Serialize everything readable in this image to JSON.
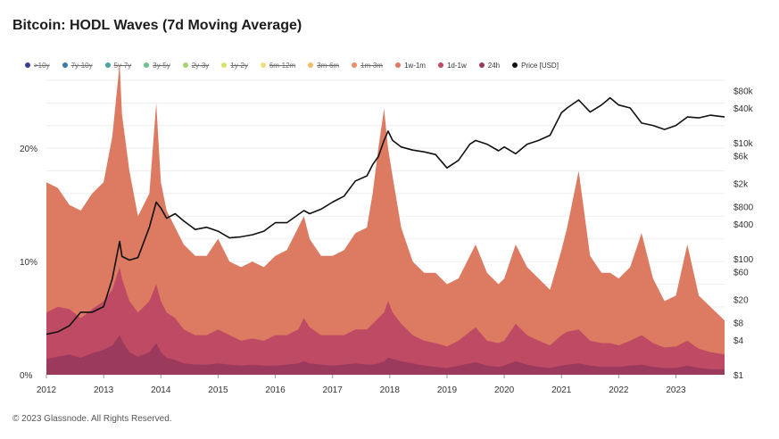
{
  "title": "Bitcoin: HODL Waves (7d Moving Average)",
  "footer": {
    "copyright": "© 2023 Glassnode. All Rights Reserved."
  },
  "colors": {
    "band_24h": "#9c3a5e",
    "band_1d_1w": "#bf4a64",
    "band_1w_1m": "#dd7a62",
    "band_1m_3m": "#e88e6b",
    "price_line": "#111111",
    "grid": "#eeeeee"
  },
  "chart_data": {
    "type": "area",
    "title": "Bitcoin: HODL Waves (7d Moving Average)",
    "legend_position": "top",
    "legend": [
      {
        "label": ">10y",
        "color": "#3b3f8f",
        "visible": false
      },
      {
        "label": "7y-10y",
        "color": "#3c78a8",
        "visible": false
      },
      {
        "label": "5y-7y",
        "color": "#4aa3a0",
        "visible": false
      },
      {
        "label": "3y-5y",
        "color": "#6cc08b",
        "visible": false
      },
      {
        "label": "2y-3y",
        "color": "#a5d36f",
        "visible": false
      },
      {
        "label": "1y-2y",
        "color": "#d9e36a",
        "visible": false
      },
      {
        "label": "6m-12m",
        "color": "#f1de7a",
        "visible": false
      },
      {
        "label": "3m-6m",
        "color": "#f0bd6b",
        "visible": false
      },
      {
        "label": "1m-3m",
        "color": "#e88e6b",
        "visible": false
      },
      {
        "label": "1w-1m",
        "color": "#dd7a62",
        "visible": true
      },
      {
        "label": "1d-1w",
        "color": "#bf4a64",
        "visible": true
      },
      {
        "label": "24h",
        "color": "#9c3a5e",
        "visible": true
      },
      {
        "label": "Price [USD]",
        "color": "#111111",
        "visible": true
      }
    ],
    "x_ticks": [
      "2012",
      "2013",
      "2014",
      "2015",
      "2016",
      "2017",
      "2018",
      "2019",
      "2020",
      "2021",
      "2022",
      "2023"
    ],
    "xlim": [
      2012.0,
      2023.85
    ],
    "y_left": {
      "ticks": [
        0,
        10,
        20
      ],
      "tick_labels": [
        "0%",
        "10%",
        "20%"
      ],
      "ylim": [
        0,
        26
      ],
      "grid": true
    },
    "y_right": {
      "scale": "log",
      "ticks": [
        1,
        4,
        8,
        20,
        60,
        100,
        400,
        800,
        2000,
        6000,
        10000,
        40000,
        80000
      ],
      "tick_labels": [
        "$1",
        "$4",
        "$8",
        "$20",
        "$60",
        "$100",
        "$400",
        "$800",
        "$2k",
        "$6k",
        "$10k",
        "$40k",
        "$80k"
      ],
      "ylim": [
        1,
        120000
      ]
    },
    "x": [
      2012.0,
      2012.2,
      2012.4,
      2012.6,
      2012.8,
      2013.0,
      2013.15,
      2013.28,
      2013.32,
      2013.45,
      2013.6,
      2013.8,
      2013.92,
      2014.0,
      2014.1,
      2014.25,
      2014.4,
      2014.6,
      2014.8,
      2015.0,
      2015.2,
      2015.4,
      2015.6,
      2015.8,
      2016.0,
      2016.2,
      2016.4,
      2016.5,
      2016.6,
      2016.8,
      2017.0,
      2017.2,
      2017.4,
      2017.6,
      2017.7,
      2017.8,
      2017.9,
      2017.97,
      2018.05,
      2018.2,
      2018.4,
      2018.6,
      2018.8,
      2019.0,
      2019.2,
      2019.4,
      2019.5,
      2019.7,
      2019.9,
      2020.0,
      2020.2,
      2020.4,
      2020.6,
      2020.8,
      2021.0,
      2021.1,
      2021.3,
      2021.5,
      2021.7,
      2021.85,
      2022.0,
      2022.2,
      2022.4,
      2022.6,
      2022.8,
      2023.0,
      2023.2,
      2023.4,
      2023.6,
      2023.85
    ],
    "series": [
      {
        "name": "24h",
        "values": [
          1.4,
          1.6,
          1.8,
          1.5,
          1.9,
          2.2,
          2.6,
          3.5,
          3.0,
          2.0,
          1.6,
          2.0,
          2.8,
          2.0,
          1.5,
          1.3,
          1.0,
          0.9,
          0.9,
          1.0,
          0.9,
          0.8,
          0.9,
          0.8,
          0.8,
          0.9,
          1.0,
          1.2,
          1.0,
          0.9,
          0.8,
          0.9,
          1.0,
          0.9,
          0.9,
          1.0,
          1.2,
          1.5,
          1.4,
          1.2,
          1.0,
          0.8,
          0.7,
          0.6,
          0.8,
          1.0,
          1.1,
          0.8,
          0.7,
          0.8,
          1.2,
          0.9,
          0.7,
          0.6,
          0.8,
          0.9,
          1.0,
          0.8,
          0.7,
          0.7,
          0.7,
          0.8,
          0.9,
          0.7,
          0.6,
          0.6,
          0.8,
          0.6,
          0.5,
          0.5
        ]
      },
      {
        "name": "1d-1w",
        "values": [
          5.5,
          6.0,
          5.8,
          5.0,
          5.8,
          6.5,
          7.5,
          9.5,
          8.5,
          6.5,
          5.5,
          6.5,
          8.0,
          6.5,
          5.5,
          5.0,
          4.0,
          3.5,
          3.5,
          4.0,
          3.5,
          3.0,
          3.2,
          3.0,
          3.5,
          3.5,
          4.0,
          5.0,
          4.2,
          3.5,
          3.5,
          3.5,
          4.0,
          4.0,
          4.5,
          5.0,
          5.5,
          6.5,
          5.5,
          4.5,
          3.5,
          3.0,
          2.8,
          2.5,
          3.0,
          3.8,
          4.2,
          3.0,
          2.8,
          3.0,
          4.5,
          3.5,
          3.0,
          2.6,
          3.5,
          3.8,
          4.0,
          3.0,
          2.8,
          2.8,
          2.6,
          3.0,
          3.5,
          2.8,
          2.4,
          2.5,
          3.0,
          2.3,
          2.0,
          1.8
        ]
      },
      {
        "name": "1w-1m",
        "values": [
          17.0,
          16.5,
          15.0,
          14.5,
          16.0,
          17.0,
          21.0,
          27.5,
          23.0,
          18.0,
          14.0,
          16.0,
          24.0,
          17.0,
          14.5,
          13.0,
          11.5,
          10.5,
          10.5,
          12.0,
          10.0,
          9.5,
          10.0,
          9.5,
          10.5,
          11.0,
          13.0,
          14.0,
          12.0,
          10.5,
          10.5,
          11.0,
          12.5,
          13.0,
          16.0,
          20.0,
          23.5,
          20.0,
          17.5,
          13.0,
          10.0,
          9.0,
          9.0,
          8.0,
          8.5,
          10.5,
          11.5,
          9.0,
          8.0,
          8.5,
          11.5,
          9.5,
          8.5,
          7.5,
          11.0,
          13.0,
          18.0,
          10.5,
          9.0,
          9.0,
          8.5,
          9.5,
          12.5,
          8.5,
          6.5,
          7.0,
          11.5,
          7.0,
          6.0,
          4.8
        ]
      }
    ],
    "price_usd": [
      5,
      5.5,
      7,
      12,
      12,
      15,
      45,
      200,
      110,
      95,
      105,
      350,
      950,
      750,
      500,
      600,
      450,
      320,
      350,
      300,
      230,
      240,
      260,
      300,
      420,
      420,
      580,
      680,
      600,
      720,
      950,
      1200,
      2200,
      2700,
      4200,
      5800,
      11000,
      16000,
      11000,
      8500,
      7500,
      7000,
      6300,
      3700,
      5000,
      9500,
      11000,
      9500,
      7300,
      8500,
      6500,
      9500,
      11000,
      13500,
      33000,
      40000,
      55000,
      34000,
      45000,
      60000,
      45000,
      40000,
      22000,
      20000,
      17000,
      20000,
      28000,
      27000,
      30000,
      28000
    ]
  }
}
